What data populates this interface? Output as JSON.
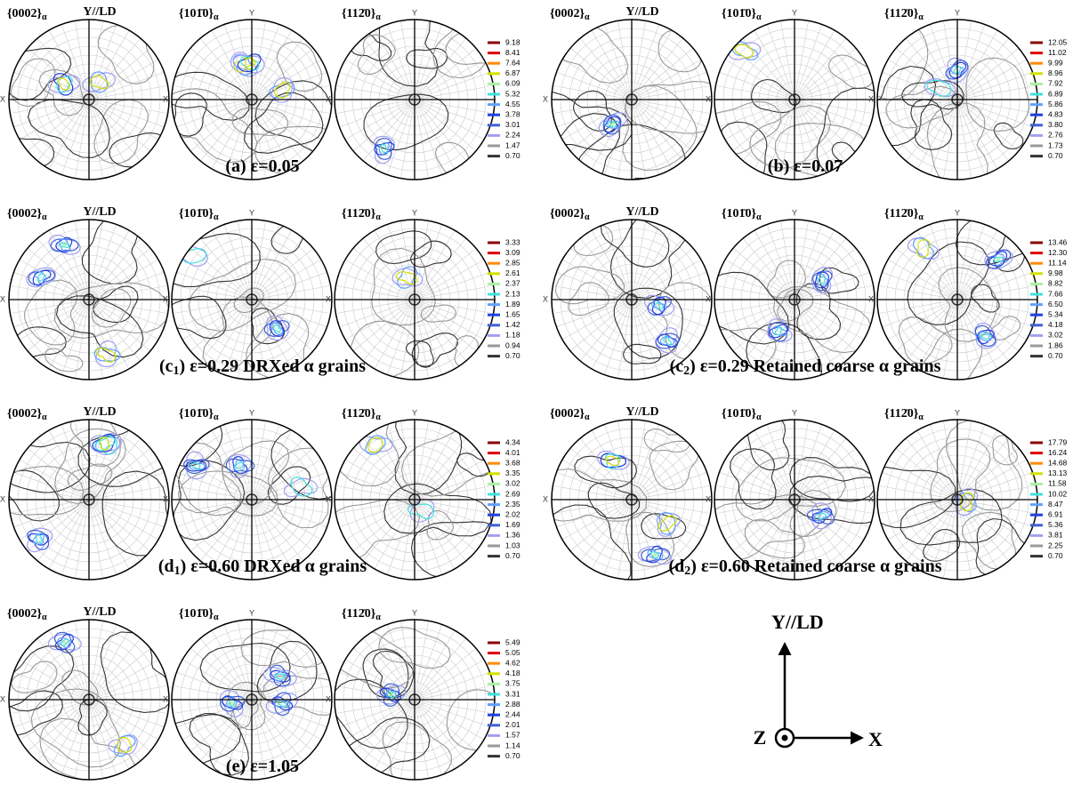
{
  "panels": [
    {
      "caption": {
        "text": "(a) ε=0.05"
      },
      "pole_figures": [
        {
          "title": "{0002}",
          "sub": "α",
          "axis_y": "Y//LD",
          "axis_x": "X"
        },
        {
          "title": "{101̄0}",
          "sub": "α",
          "axis_y": "Y",
          "axis_x": "X"
        },
        {
          "title": "{112̄0}",
          "sub": "α",
          "axis_y": "Y",
          "axis_x": "X"
        }
      ],
      "legend": [
        "9.18",
        "8.41",
        "7.64",
        "6.87",
        "6.09",
        "5.32",
        "4.55",
        "3.78",
        "3.01",
        "2.24",
        "1.47",
        "0.70"
      ]
    },
    {
      "caption": {
        "text": "(b) ε=0.07"
      },
      "pole_figures": [
        {
          "title": "{0002}",
          "sub": "α",
          "axis_y": "Y//LD",
          "axis_x": "X"
        },
        {
          "title": "{101̄0}",
          "sub": "α",
          "axis_y": "Y",
          "axis_x": "X"
        },
        {
          "title": "{112̄0}",
          "sub": "α",
          "axis_y": "Y",
          "axis_x": "X"
        }
      ],
      "legend": [
        "12.05",
        "11.02",
        "9.99",
        "8.96",
        "7.92",
        "6.89",
        "5.86",
        "4.83",
        "3.80",
        "2.76",
        "1.73",
        "0.70"
      ]
    },
    {
      "caption": {
        "text": "(c",
        "sub": "1",
        "rest": ") ε=0.29 DRXed α grains"
      },
      "pole_figures": [
        {
          "title": "{0002}",
          "sub": "α",
          "axis_y": "Y//LD",
          "axis_x": "X"
        },
        {
          "title": "{101̄0}",
          "sub": "α",
          "axis_y": "Y",
          "axis_x": "X"
        },
        {
          "title": "{112̄0}",
          "sub": "α",
          "axis_y": "Y",
          "axis_x": "X"
        }
      ],
      "legend": [
        "3.33",
        "3.09",
        "2.85",
        "2.61",
        "2.37",
        "2.13",
        "1.89",
        "1.65",
        "1.42",
        "1.18",
        "0.94",
        "0.70"
      ]
    },
    {
      "caption": {
        "text": "(c",
        "sub": "2",
        "rest": ") ε=0.29 Retained coarse α grains"
      },
      "pole_figures": [
        {
          "title": "{0002}",
          "sub": "α",
          "axis_y": "Y//LD",
          "axis_x": "X"
        },
        {
          "title": "{101̄0}",
          "sub": "α",
          "axis_y": "Y",
          "axis_x": "X"
        },
        {
          "title": "{112̄0}",
          "sub": "α",
          "axis_y": "Y",
          "axis_x": "X"
        }
      ],
      "legend": [
        "13.46",
        "12.30",
        "11.14",
        "9.98",
        "8.82",
        "7.66",
        "6.50",
        "5.34",
        "4.18",
        "3.02",
        "1.86",
        "0.70"
      ]
    },
    {
      "caption": {
        "text": "(d",
        "sub": "1",
        "rest": ") ε=0.60 DRXed α grains"
      },
      "pole_figures": [
        {
          "title": "{0002}",
          "sub": "α",
          "axis_y": "Y//LD",
          "axis_x": "X"
        },
        {
          "title": "{101̄0}",
          "sub": "α",
          "axis_y": "Y",
          "axis_x": "X"
        },
        {
          "title": "{112̄0}",
          "sub": "α",
          "axis_y": "Y",
          "axis_x": "X"
        }
      ],
      "legend": [
        "4.34",
        "4.01",
        "3.68",
        "3.35",
        "3.02",
        "2.69",
        "2.35",
        "2.02",
        "1.69",
        "1.36",
        "1.03",
        "0.70"
      ]
    },
    {
      "caption": {
        "text": "(d",
        "sub": "2",
        "rest": ") ε=0.60 Retained coarse α grains"
      },
      "pole_figures": [
        {
          "title": "{0002}",
          "sub": "α",
          "axis_y": "Y//LD",
          "axis_x": "X"
        },
        {
          "title": "{101̄0}",
          "sub": "α",
          "axis_y": "Y",
          "axis_x": "X"
        },
        {
          "title": "{112̄0}",
          "sub": "α",
          "axis_y": "Y",
          "axis_x": "X"
        }
      ],
      "legend": [
        "17.79",
        "16.24",
        "14.68",
        "13.13",
        "11.58",
        "10.02",
        "8.47",
        "6.91",
        "5.36",
        "3.81",
        "2.25",
        "0.70"
      ]
    },
    {
      "caption": {
        "text": "(e) ε=1.05"
      },
      "pole_figures": [
        {
          "title": "{0002}",
          "sub": "α",
          "axis_y": "Y//LD",
          "axis_x": "X"
        },
        {
          "title": "{101̄0}",
          "sub": "α",
          "axis_y": "Y",
          "axis_x": "X"
        },
        {
          "title": "{112̄0}",
          "sub": "α",
          "axis_y": "Y",
          "axis_x": "X"
        }
      ],
      "legend": [
        "5.49",
        "5.05",
        "4.62",
        "4.18",
        "3.75",
        "3.31",
        "2.88",
        "2.44",
        "2.01",
        "1.57",
        "1.14",
        "0.70"
      ]
    }
  ],
  "frame": {
    "y": "Y//LD",
    "z": "Z",
    "x": "X"
  }
}
